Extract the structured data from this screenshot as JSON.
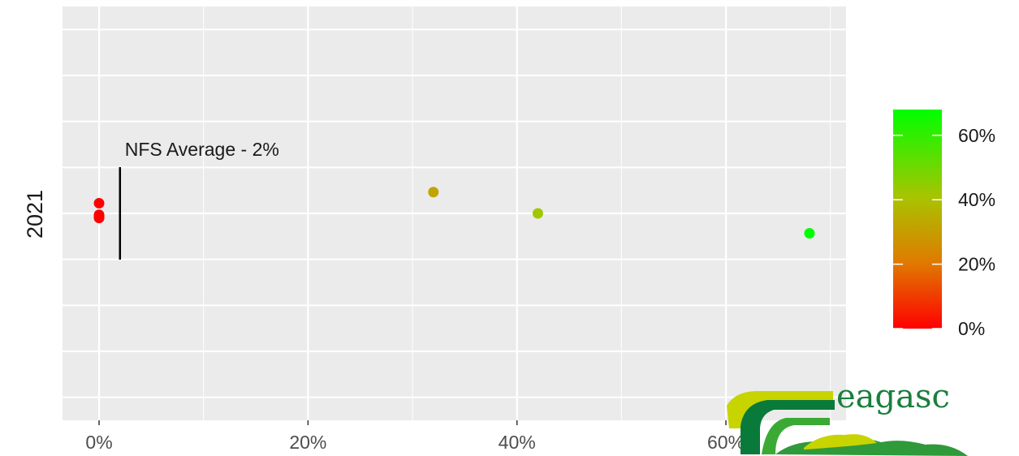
{
  "chart_data": {
    "type": "scatter",
    "y_category": "2021",
    "xlim": [
      -0.035,
      0.715
    ],
    "x_ticks": [
      0,
      0.2,
      0.4,
      0.6
    ],
    "x_tick_labels": [
      "0%",
      "20%",
      "40%",
      "60%"
    ],
    "points": [
      {
        "x": 0.0,
        "jitter": 0.22
      },
      {
        "x": 0.0,
        "jitter": -0.03
      },
      {
        "x": 0.0,
        "jitter": -0.07
      },
      {
        "x": 0.0,
        "jitter": -0.1
      },
      {
        "x": 0.32,
        "jitter": 0.46
      },
      {
        "x": 0.42,
        "jitter": 0.0
      },
      {
        "x": 0.68,
        "jitter": -0.43
      }
    ],
    "reference_line": {
      "x": 0.02,
      "label": "NFS Average - 2%"
    },
    "color_scale": {
      "low_color": "#ff0000",
      "high_color": "#00ff00",
      "range": [
        0,
        0.68
      ],
      "breaks": [
        0,
        0.2,
        0.4,
        0.6
      ],
      "labels": [
        "0%",
        "20%",
        "40%",
        "60%"
      ]
    },
    "grid": true,
    "legend_position": "right"
  },
  "logo": {
    "text": "eagasc",
    "colors": {
      "dark": "#0a7a3a",
      "mid": "#3aaa35",
      "light": "#c8d400"
    }
  }
}
